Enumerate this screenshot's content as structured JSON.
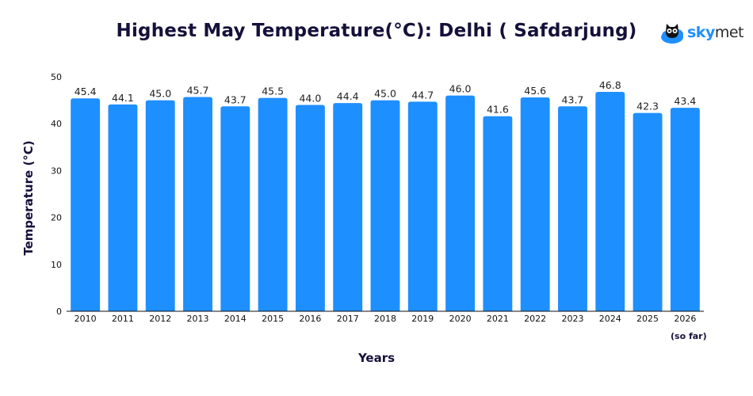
{
  "header": {
    "title": "Highest May Temperature(°C): Delhi ( Safdarjung)",
    "brand_sky": "sky",
    "brand_met": "met"
  },
  "axes": {
    "ylabel": "Temperature (°C)",
    "xlabel": "Years",
    "note": "(so far)"
  },
  "colors": {
    "bar": "#1e8fff",
    "axis": "#111111",
    "title": "#15103a"
  },
  "chart_data": {
    "type": "bar",
    "title": "Highest May Temperature(°C): Delhi ( Safdarjung)",
    "xlabel": "Years",
    "ylabel": "Temperature (°C)",
    "categories": [
      "2010",
      "2011",
      "2012",
      "2013",
      "2014",
      "2015",
      "2016",
      "2017",
      "2018",
      "2019",
      "2020",
      "2021",
      "2022",
      "2023",
      "2024",
      "2025",
      "2026"
    ],
    "values": [
      45.4,
      44.1,
      45.0,
      45.7,
      43.7,
      45.5,
      44.0,
      44.4,
      45.0,
      44.7,
      46.0,
      41.6,
      45.6,
      43.7,
      46.8,
      42.3,
      43.4
    ],
    "data_labels": [
      "45.4",
      "44.1",
      "45.0",
      "45.7",
      "43.7",
      "45.5",
      "44.0",
      "44.4",
      "45.0",
      "44.7",
      "46.0",
      "41.6",
      "45.6",
      "43.7",
      "46.8",
      "42.3",
      "43.4"
    ],
    "ylim": [
      0,
      50
    ],
    "yticks": [
      0,
      10,
      20,
      30,
      40,
      50
    ],
    "grid": false,
    "legend": "none"
  }
}
